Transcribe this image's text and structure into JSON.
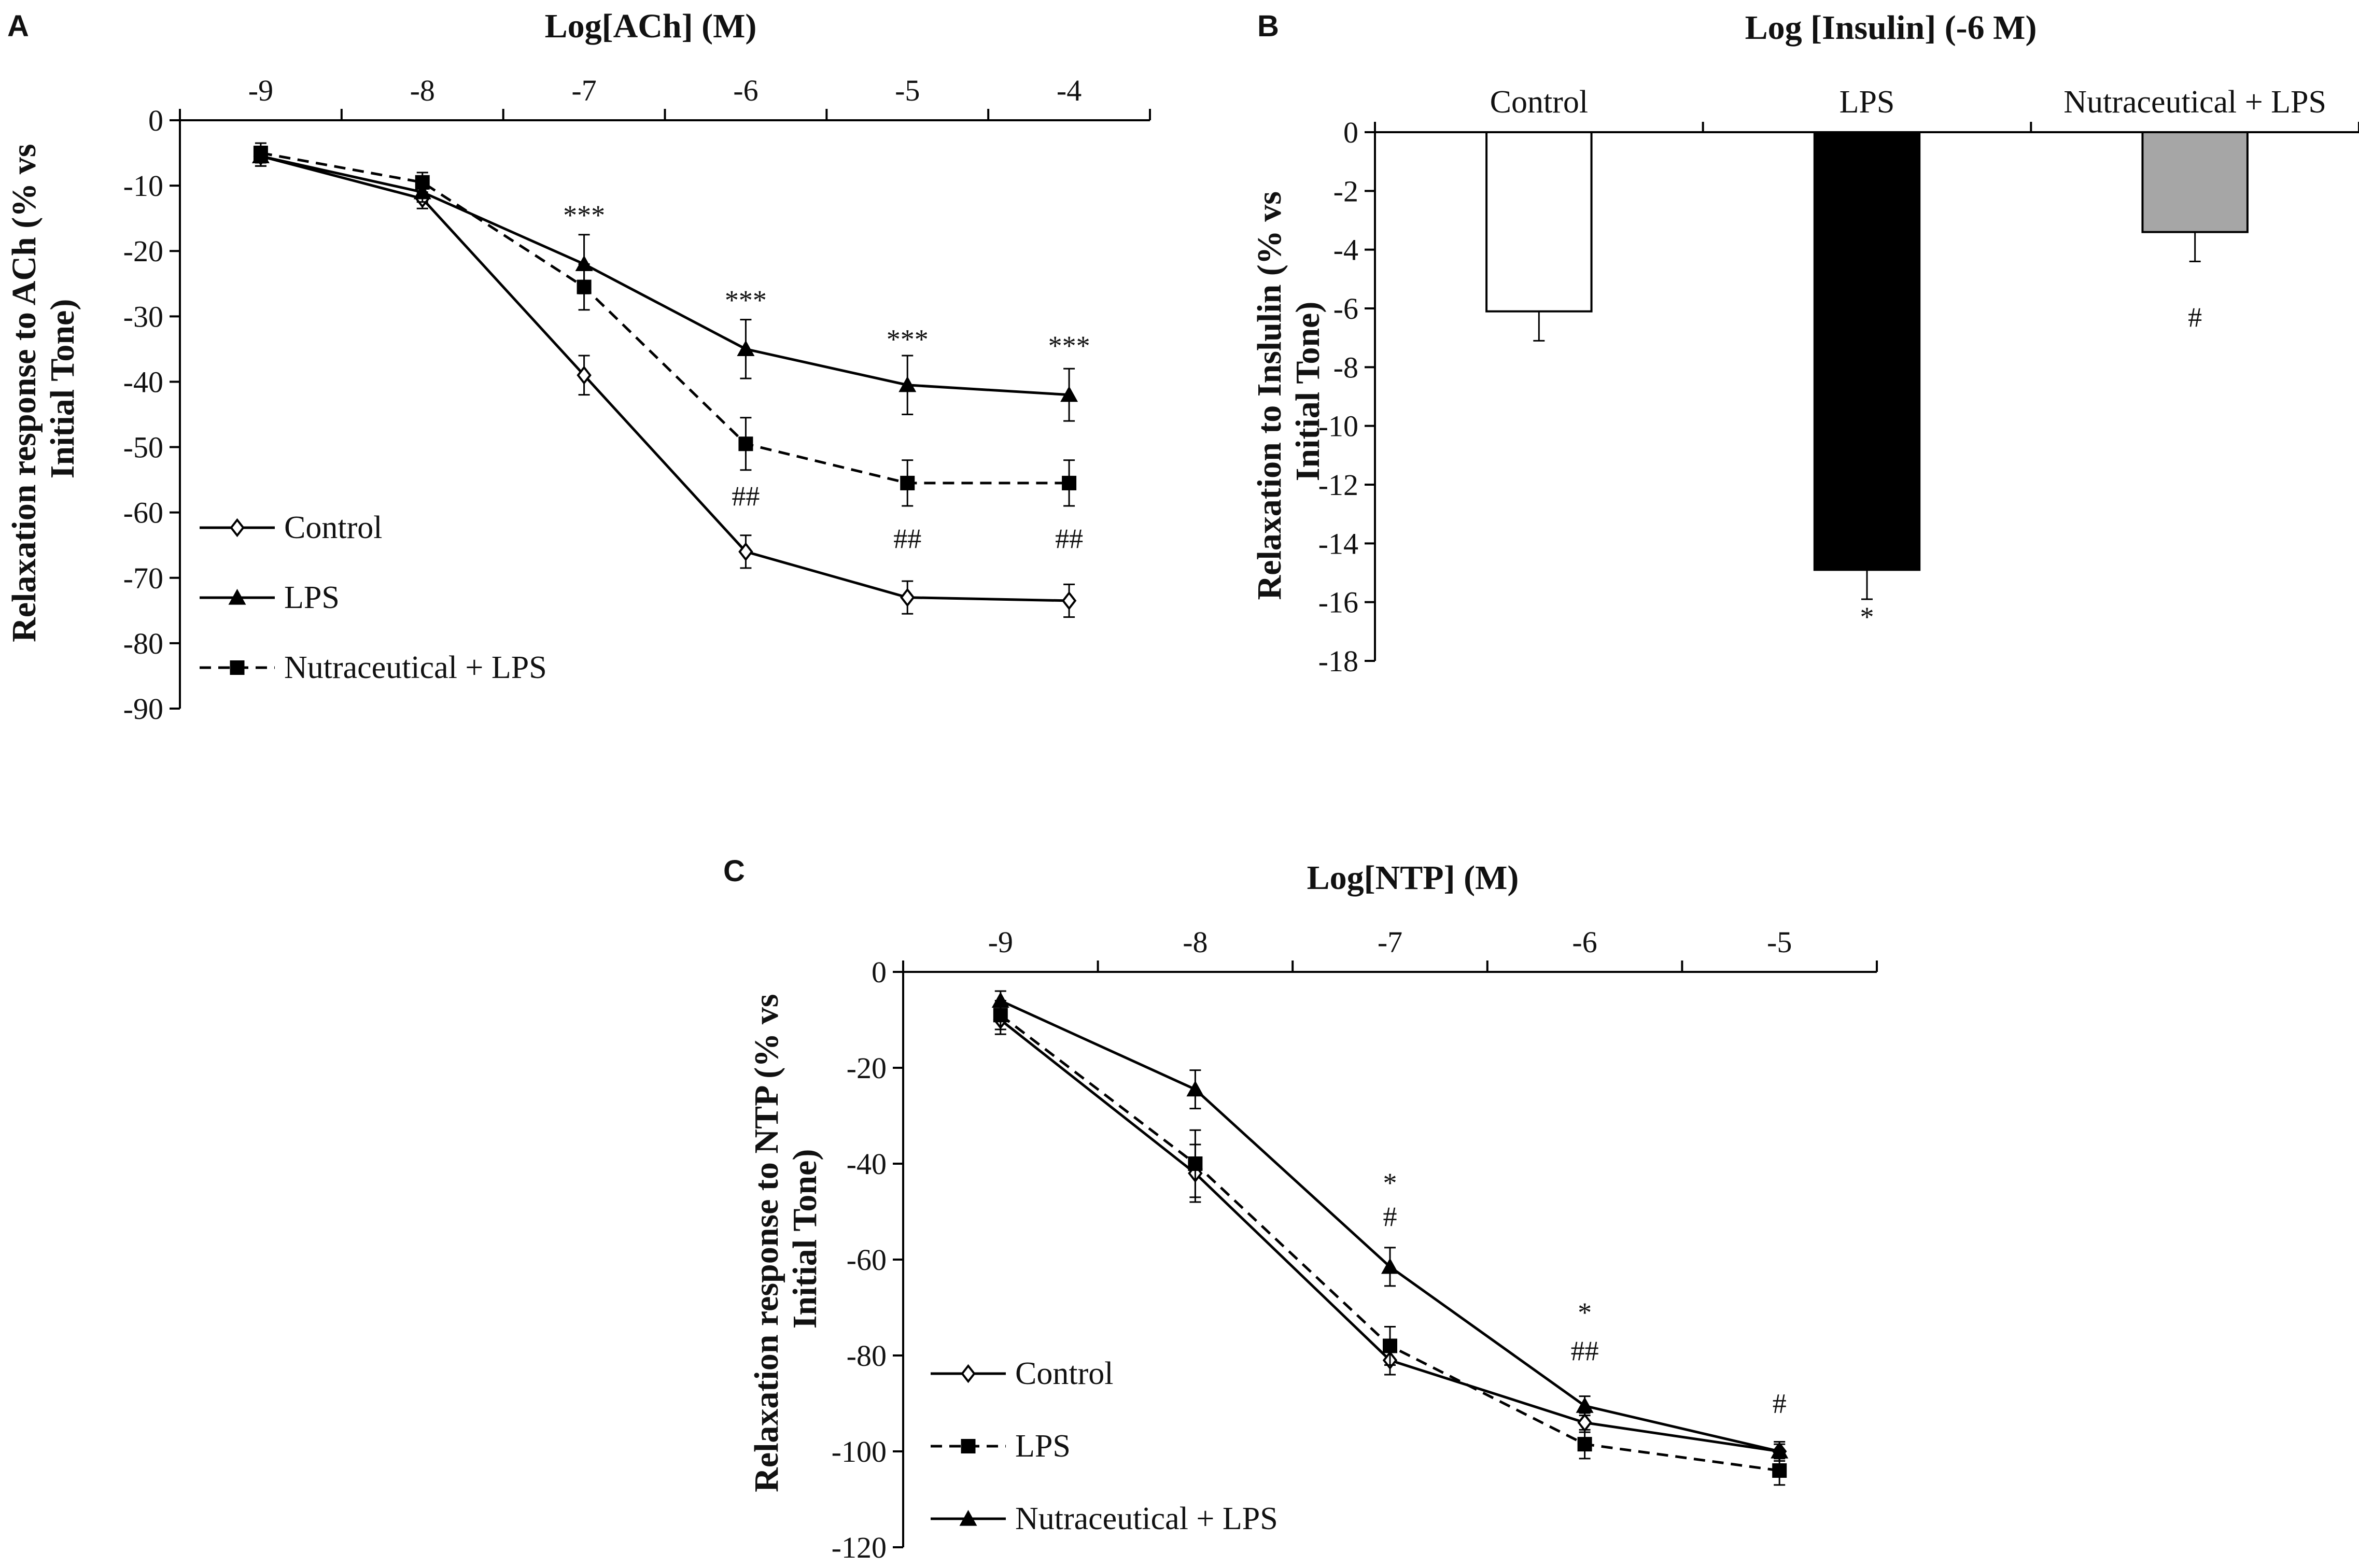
{
  "chart_data": [
    {
      "panel": "A",
      "type": "line",
      "xlabel": "Log[ACh] (M)",
      "ylabel": "Relaxation response to ACh (% vs Initial Tone)",
      "x_axis_position": "top",
      "x": [
        -9,
        -8,
        -7,
        -6,
        -5,
        -4
      ],
      "x_tick_labels": [
        "-9",
        "-8",
        "-7",
        "-6",
        "-5",
        "-4"
      ],
      "xlim": [
        -9.5,
        -3.5
      ],
      "ylim": [
        -90,
        0
      ],
      "y_ticks": [
        0,
        -10,
        -20,
        -30,
        -40,
        -50,
        -60,
        -70,
        -80,
        -90
      ],
      "legend_position": "bottom-left",
      "series": [
        {
          "name": "Control",
          "marker": "open-diamond",
          "line": "solid",
          "values": [
            -5.5,
            -12,
            -39,
            -66,
            -73,
            -73.5
          ],
          "errors": [
            1.5,
            1.5,
            3,
            2.5,
            2.5,
            2.5
          ]
        },
        {
          "name": "LPS",
          "marker": "filled-triangle",
          "line": "solid",
          "values": [
            -5.5,
            -11,
            -22,
            -35,
            -40.5,
            -42
          ],
          "errors": [
            1.5,
            1.5,
            4.5,
            4.5,
            4.5,
            4
          ]
        },
        {
          "name": "Nutraceutical + LPS",
          "marker": "filled-square",
          "line": "dashed",
          "values": [
            -5,
            -9.5,
            -25.5,
            -49.5,
            -55.5,
            -55.5
          ],
          "errors": [
            1.5,
            1.5,
            3.5,
            4,
            3.5,
            3.5
          ]
        }
      ],
      "annotations": [
        {
          "text": "***",
          "x": -7,
          "y": -14.5
        },
        {
          "text": "***",
          "x": -6,
          "y": -27.5
        },
        {
          "text": "***",
          "x": -5,
          "y": -33.5
        },
        {
          "text": "***",
          "x": -4,
          "y": -34.5
        },
        {
          "text": "##",
          "x": -6,
          "y": -57.5
        },
        {
          "text": "##",
          "x": -5,
          "y": -64
        },
        {
          "text": "##",
          "x": -4,
          "y": -64
        }
      ]
    },
    {
      "panel": "B",
      "type": "bar",
      "title": "Log [Insulin] (-6 M)",
      "ylabel": "Relaxation to Inslulin (% vs Initial Tone)",
      "categories": [
        "Control",
        "LPS",
        "Nutraceutical + LPS"
      ],
      "values": [
        -6.1,
        -14.9,
        -3.4
      ],
      "errors": [
        1.0,
        1.0,
        1.0
      ],
      "colors": [
        "#ffffff",
        "#000000",
        "#a6a6a6"
      ],
      "ylim": [
        -18,
        0
      ],
      "y_ticks": [
        0,
        -2,
        -4,
        -6,
        -8,
        -10,
        -12,
        -14,
        -16,
        -18
      ],
      "annotations": [
        {
          "text": "*",
          "category": 1,
          "y": -16.5
        },
        {
          "text": "#",
          "category": 2,
          "y": -6.3
        }
      ]
    },
    {
      "panel": "C",
      "type": "line",
      "xlabel": "Log[NTP] (M)",
      "ylabel": "Relaxation response to NTP (% vs Initial Tone)",
      "x_axis_position": "top",
      "x": [
        -9,
        -8,
        -7,
        -6,
        -5
      ],
      "x_tick_labels": [
        "-9",
        "-8",
        "-7",
        "-6",
        "-5"
      ],
      "xlim": [
        -9.5,
        -4.5
      ],
      "ylim": [
        -120,
        0
      ],
      "y_ticks": [
        0,
        -20,
        -40,
        -60,
        -80,
        -100,
        -120
      ],
      "legend_position": "bottom-left",
      "series": [
        {
          "name": "Control",
          "marker": "open-diamond",
          "line": "solid",
          "values": [
            -10,
            -42,
            -81,
            -94,
            -100
          ],
          "errors": [
            3,
            6,
            3,
            2,
            2
          ]
        },
        {
          "name": "LPS",
          "marker": "filled-square",
          "line": "dashed",
          "values": [
            -9,
            -40,
            -78,
            -98.5,
            -104
          ],
          "errors": [
            3,
            7,
            4,
            3,
            3
          ]
        },
        {
          "name": "Nutraceutical + LPS",
          "marker": "filled-triangle",
          "line": "solid",
          "values": [
            -6,
            -24.5,
            -61.5,
            -90.5,
            -100
          ],
          "errors": [
            2,
            4,
            4,
            2,
            1.5
          ]
        }
      ],
      "annotations": [
        {
          "text": "*",
          "x": -7,
          "y": -44
        },
        {
          "text": "#",
          "x": -7,
          "y": -51
        },
        {
          "text": "*",
          "x": -6,
          "y": -71
        },
        {
          "text": "##",
          "x": -6,
          "y": -79
        },
        {
          "text": "#",
          "x": -5,
          "y": -90
        }
      ]
    }
  ],
  "panel_labels": {
    "a": "A",
    "b": "B",
    "c": "C"
  }
}
